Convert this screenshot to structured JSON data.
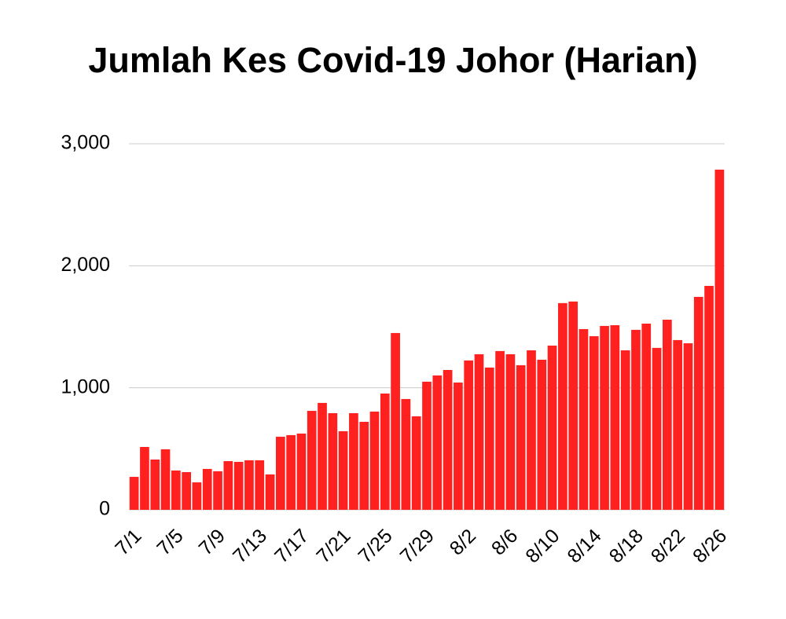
{
  "chart_data": {
    "type": "bar",
    "title": "Jumlah Kes Covid-19 Johor (Harian)",
    "categories": [
      "7/1",
      null,
      null,
      null,
      "7/5",
      null,
      null,
      null,
      "7/9",
      null,
      null,
      null,
      "7/13",
      null,
      null,
      null,
      "7/17",
      null,
      null,
      null,
      "7/21",
      null,
      null,
      null,
      "7/25",
      null,
      null,
      null,
      "7/29",
      null,
      null,
      null,
      "8/2",
      null,
      null,
      null,
      "8/6",
      null,
      null,
      null,
      "8/10",
      null,
      null,
      null,
      "8/14",
      null,
      null,
      null,
      "8/18",
      null,
      null,
      null,
      "8/22",
      null,
      null,
      null,
      "8/26"
    ],
    "values": [
      270,
      515,
      412,
      496,
      322,
      309,
      225,
      335,
      316,
      399,
      393,
      406,
      406,
      290,
      599,
      612,
      625,
      811,
      876,
      792,
      644,
      792,
      721,
      805,
      953,
      1449,
      908,
      766,
      1050,
      1101,
      1146,
      1043,
      1224,
      1275,
      1166,
      1301,
      1275,
      1185,
      1307,
      1230,
      1346,
      1694,
      1707,
      1481,
      1423,
      1507,
      1513,
      1307,
      1475,
      1526,
      1327,
      1558,
      1391,
      1365,
      1745,
      1835,
      2788
    ],
    "color": "#ff2020",
    "ylim": [
      0,
      3000
    ],
    "yticks": [
      0,
      {
        "value": 1000,
        "label": "1,000"
      },
      {
        "value": 2000,
        "label": "2,000"
      },
      {
        "value": 3000,
        "label": "3,000"
      }
    ],
    "grid": true
  }
}
